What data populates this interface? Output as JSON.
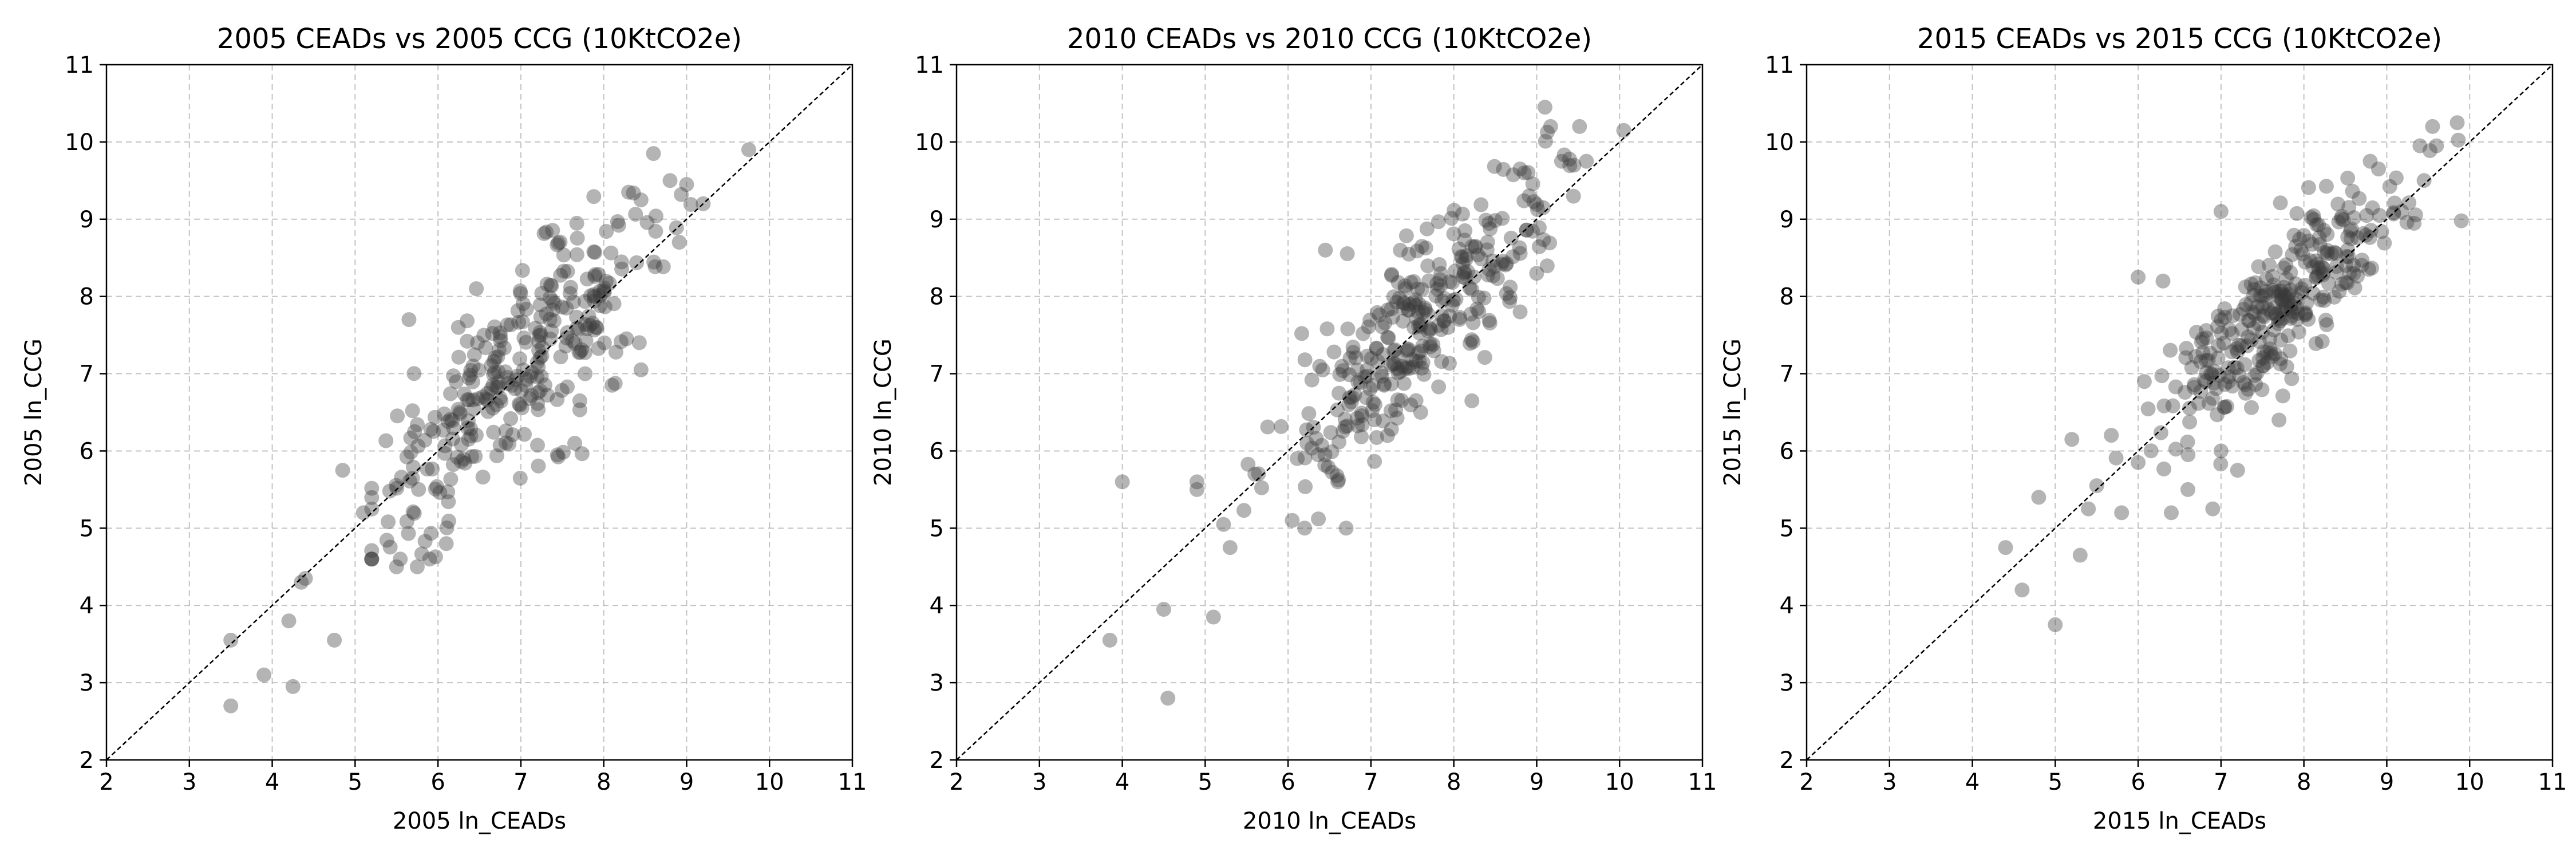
{
  "chart_data": [
    {
      "type": "scatter",
      "title": "2005 CEADs vs 2005 CCG (10KtCO2e)",
      "xlabel": "2005 ln_CEADs",
      "ylabel": "2005 ln_CCG",
      "xlim": [
        2,
        11
      ],
      "ylim": [
        2,
        11
      ],
      "xticks": [
        "2",
        "3",
        "4",
        "5",
        "6",
        "7",
        "8",
        "9",
        "10",
        "11"
      ],
      "yticks": [
        "2",
        "3",
        "4",
        "5",
        "6",
        "7",
        "8",
        "9",
        "10",
        "11"
      ],
      "grid": true,
      "reference_line": "y = x",
      "n_points": 330,
      "x_center": 6.95,
      "y_center": 7.0,
      "x_spread": 0.9,
      "y_noise": 0.58,
      "points": [
        [
          3.5,
          3.55
        ],
        [
          3.5,
          2.7
        ],
        [
          3.9,
          3.1
        ],
        [
          4.25,
          2.95
        ],
        [
          4.2,
          3.8
        ],
        [
          4.35,
          4.3
        ],
        [
          4.4,
          4.35
        ],
        [
          4.75,
          3.55
        ],
        [
          4.85,
          5.75
        ],
        [
          5.1,
          5.2
        ],
        [
          5.65,
          7.7
        ],
        [
          8.6,
          9.85
        ],
        [
          8.8,
          9.5
        ],
        [
          9.0,
          9.45
        ],
        [
          9.2,
          9.2
        ],
        [
          9.75,
          9.9
        ],
        [
          8.3,
          9.35
        ],
        [
          8.45,
          9.25
        ],
        [
          7.65,
          6.1
        ],
        [
          8.1,
          6.85
        ],
        [
          8.45,
          7.05
        ],
        [
          5.5,
          4.5
        ],
        [
          5.75,
          4.5
        ],
        [
          5.9,
          4.6
        ],
        [
          6.1,
          4.8
        ]
      ]
    },
    {
      "type": "scatter",
      "title": "2010 CEADs vs 2010 CCG (10KtCO2e)",
      "xlabel": "2010 ln_CEADs",
      "ylabel": "2010 ln_CCG",
      "xlim": [
        2,
        11
      ],
      "ylim": [
        2,
        11
      ],
      "xticks": [
        "2",
        "3",
        "4",
        "5",
        "6",
        "7",
        "8",
        "9",
        "10",
        "11"
      ],
      "yticks": [
        "2",
        "3",
        "4",
        "5",
        "6",
        "7",
        "8",
        "9",
        "10",
        "11"
      ],
      "grid": true,
      "reference_line": "y = x",
      "n_points": 330,
      "x_center": 7.55,
      "y_center": 7.65,
      "x_spread": 0.8,
      "y_noise": 0.55,
      "points": [
        [
          3.85,
          3.55
        ],
        [
          4.0,
          5.6
        ],
        [
          4.5,
          3.95
        ],
        [
          4.55,
          2.8
        ],
        [
          4.9,
          5.5
        ],
        [
          4.9,
          5.6
        ],
        [
          5.1,
          3.85
        ],
        [
          5.3,
          4.75
        ],
        [
          5.6,
          5.7
        ],
        [
          6.05,
          5.1
        ],
        [
          6.2,
          5.0
        ],
        [
          6.7,
          5.0
        ],
        [
          6.45,
          8.6
        ],
        [
          9.1,
          10.45
        ],
        [
          10.05,
          10.15
        ],
        [
          9.3,
          9.75
        ],
        [
          9.45,
          9.7
        ],
        [
          9.6,
          9.75
        ],
        [
          8.8,
          9.65
        ],
        [
          8.85,
          9.6
        ],
        [
          8.8,
          7.8
        ],
        [
          9.0,
          8.3
        ],
        [
          6.6,
          5.6
        ],
        [
          7.6,
          6.5
        ],
        [
          7.2,
          6.2
        ]
      ]
    },
    {
      "type": "scatter",
      "title": "2015 CEADs vs 2015 CCG (10KtCO2e)",
      "xlabel": "2015 ln_CEADs",
      "ylabel": "2015 ln_CCG",
      "xlim": [
        2,
        11
      ],
      "ylim": [
        2,
        11
      ],
      "xticks": [
        "2",
        "3",
        "4",
        "5",
        "6",
        "7",
        "8",
        "9",
        "10",
        "11"
      ],
      "yticks": [
        "2",
        "3",
        "4",
        "5",
        "6",
        "7",
        "8",
        "9",
        "10",
        "11"
      ],
      "grid": true,
      "reference_line": "y = x",
      "n_points": 330,
      "x_center": 7.75,
      "y_center": 7.9,
      "x_spread": 0.75,
      "y_noise": 0.45,
      "points": [
        [
          4.4,
          4.75
        ],
        [
          4.6,
          4.2
        ],
        [
          4.8,
          5.4
        ],
        [
          5.0,
          3.75
        ],
        [
          5.3,
          4.65
        ],
        [
          5.2,
          6.15
        ],
        [
          5.5,
          5.55
        ],
        [
          5.4,
          5.25
        ],
        [
          5.8,
          5.2
        ],
        [
          6.0,
          5.85
        ],
        [
          6.4,
          5.2
        ],
        [
          6.6,
          5.5
        ],
        [
          6.9,
          5.25
        ],
        [
          7.2,
          5.75
        ],
        [
          7.0,
          6.0
        ],
        [
          7.0,
          9.1
        ],
        [
          6.0,
          8.25
        ],
        [
          6.3,
          8.2
        ],
        [
          9.85,
          10.25
        ],
        [
          9.45,
          9.5
        ],
        [
          9.4,
          9.95
        ],
        [
          8.8,
          9.75
        ],
        [
          8.9,
          9.65
        ],
        [
          9.6,
          9.95
        ],
        [
          7.7,
          6.4
        ]
      ]
    }
  ]
}
